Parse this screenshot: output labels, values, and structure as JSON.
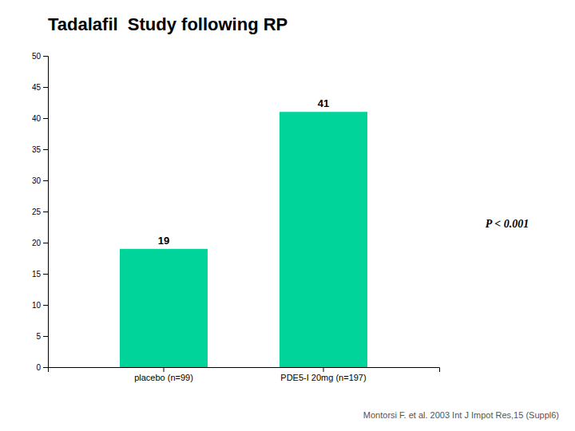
{
  "chart_data": {
    "type": "bar",
    "title": "Tadalafil  Study following RP",
    "categories": [
      "placebo (n=99)",
      "PDE5-I 20mg (n=197)"
    ],
    "values": [
      19,
      41
    ],
    "color": "#00D49A",
    "ylim": [
      0,
      50
    ],
    "yticks": [
      0,
      5,
      10,
      15,
      20,
      25,
      30,
      35,
      40,
      45,
      50
    ],
    "data_labels": true,
    "grid": false,
    "annotations": [
      "P < 0.001",
      "Montorsi F. et al. 2003 Int J Impot Res,15 (Suppl6)"
    ]
  }
}
